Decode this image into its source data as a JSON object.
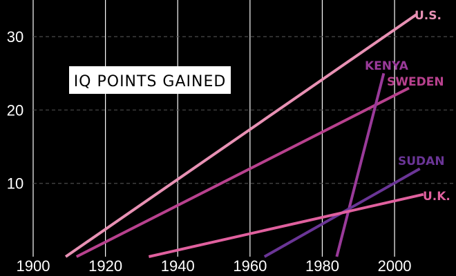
{
  "chart_data": {
    "type": "line",
    "title": "IQ POINTS GAINED",
    "xlabel": "",
    "ylabel": "",
    "xlim": [
      1900,
      2017
    ],
    "ylim": [
      0,
      35
    ],
    "x_ticks": [
      "1900",
      "1920",
      "1940",
      "1960",
      "1980",
      "2000"
    ],
    "y_ticks": [
      "10",
      "20",
      "30"
    ],
    "grid": {
      "vertical": true,
      "horizontal_dashed": true
    },
    "series": [
      {
        "name": "U.S.",
        "color": "#e891b4",
        "x": [
          1909,
          2006
        ],
        "y": [
          0,
          33
        ]
      },
      {
        "name": "SWEDEN",
        "color": "#b8418e",
        "x": [
          1912,
          2004
        ],
        "y": [
          0,
          23
        ]
      },
      {
        "name": "KENYA",
        "color": "#9a3a9a",
        "x": [
          1984,
          1997
        ],
        "y": [
          0,
          25
        ]
      },
      {
        "name": "SUDAN",
        "color": "#6a3596",
        "x": [
          1964,
          2007
        ],
        "y": [
          0,
          12
        ]
      },
      {
        "name": "U.K.",
        "color": "#e0609e",
        "x": [
          1932,
          2008
        ],
        "y": [
          0,
          8.5
        ]
      }
    ]
  }
}
